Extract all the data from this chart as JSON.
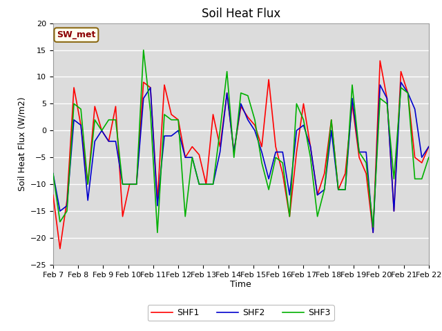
{
  "title": "Soil Heat Flux",
  "xlabel": "Time",
  "ylabel": "Soil Heat Flux (W/m2)",
  "ylim": [
    -25,
    20
  ],
  "yticks": [
    -25,
    -20,
    -15,
    -10,
    -5,
    0,
    5,
    10,
    15,
    20
  ],
  "fig_bg_color": "#ffffff",
  "plot_bg_color": "#dcdcdc",
  "grid_color": "#ffffff",
  "legend_label": "SW_met",
  "legend_bg": "#fffff0",
  "legend_edge": "#8b6914",
  "legend_text_color": "#8b0000",
  "SHF1_color": "#ff0000",
  "SHF2_color": "#0000cd",
  "SHF3_color": "#00b000",
  "linewidth": 1.2,
  "xtick_labels": [
    "Feb 7",
    "Feb 8",
    "Feb 9",
    "Feb 10",
    "Feb 11",
    "Feb 12",
    "Feb 13",
    "Feb 14",
    "Feb 15",
    "Feb 16",
    "Feb 17",
    "Feb 18",
    "Feb 19",
    "Feb 20",
    "Feb 21",
    "Feb 22"
  ],
  "SHF1": [
    -12,
    -22,
    -13,
    8,
    1,
    -10,
    4.5,
    0,
    -2,
    4.5,
    -16,
    -10,
    -10,
    9,
    8,
    -13,
    8.5,
    3,
    2,
    -5,
    -3,
    -4.5,
    -10,
    3,
    -3,
    7,
    -4,
    4.5,
    2.5,
    1,
    -3,
    9.5,
    -3,
    -8,
    -16,
    -4,
    5,
    -3,
    -12,
    -8,
    2,
    -11,
    -8,
    5,
    -5,
    -8,
    -19,
    13,
    6,
    -15,
    11,
    7,
    -5,
    -6,
    -3
  ],
  "SHF2": [
    -8,
    -15,
    -14,
    2,
    1,
    -13,
    -2,
    0,
    -2,
    -2,
    -10,
    -10,
    -10,
    6,
    8,
    -14,
    -1,
    -1,
    0,
    -5,
    -5,
    -10,
    -10,
    -10,
    -4,
    7,
    -4,
    5,
    2,
    0,
    -4,
    -9,
    -4,
    -4,
    -12,
    0,
    1,
    -3,
    -12,
    -11,
    0,
    -11,
    -11,
    6,
    -4,
    -4,
    -19,
    8.5,
    6,
    -15,
    9,
    7,
    4,
    -5,
    -3
  ],
  "SHF3": [
    -8,
    -17,
    -15,
    5,
    4,
    -10,
    2,
    0,
    2,
    2,
    -10,
    -10,
    -10,
    15,
    3.5,
    -19,
    3,
    2,
    2,
    -16,
    -5,
    -10,
    -10,
    -10,
    0,
    11,
    -5,
    7,
    6.5,
    2,
    -6,
    -11,
    -5,
    -6,
    -16,
    5,
    2,
    -5,
    -16,
    -11,
    2,
    -11,
    -11,
    8.5,
    -4,
    -6,
    -18,
    6,
    5,
    -9,
    8,
    7,
    -9,
    -9,
    -5
  ],
  "title_fontsize": 12,
  "tick_fontsize": 8,
  "label_fontsize": 9,
  "legend_fontsize": 9
}
